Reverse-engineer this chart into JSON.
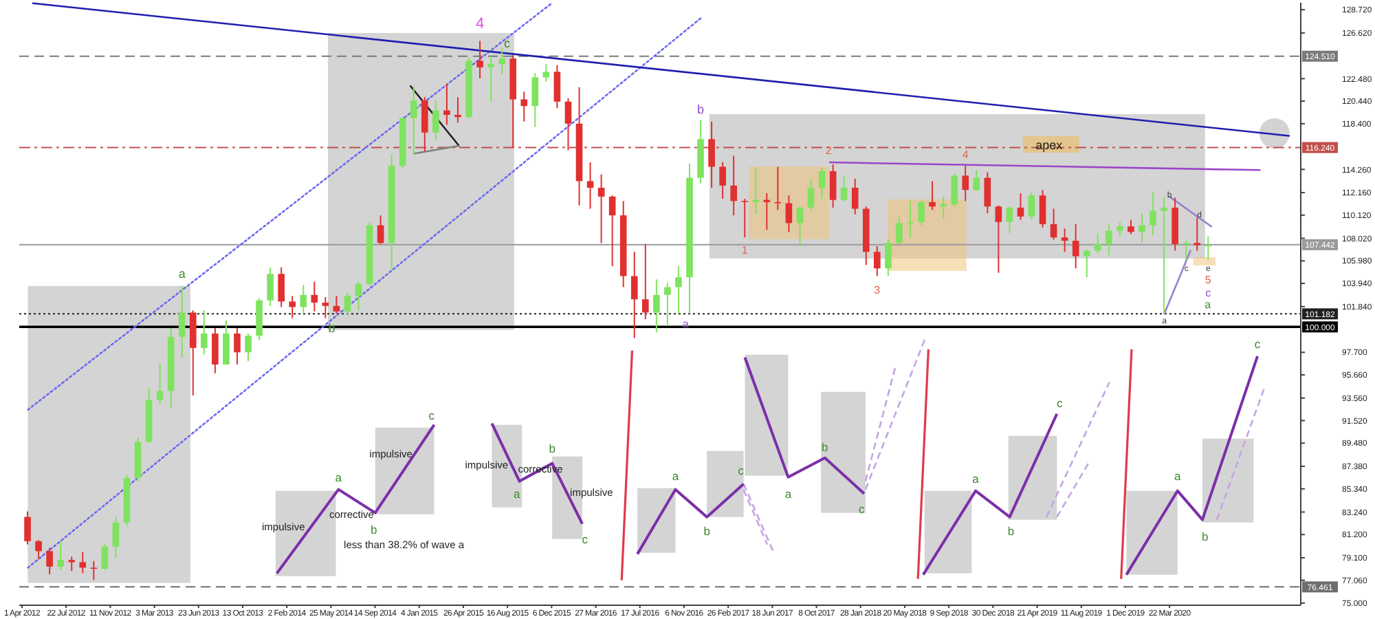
{
  "chart_data": {
    "type": "candlestick",
    "x": [
      "2012-04-15",
      "2012-05-13",
      "2012-06-10",
      "2012-07-08",
      "2012-08-05",
      "2012-09-02",
      "2012-09-30",
      "2012-10-28",
      "2012-11-25",
      "2012-12-23",
      "2013-01-20",
      "2013-02-17",
      "2013-03-17",
      "2013-04-14",
      "2013-05-12",
      "2013-06-09",
      "2013-07-07",
      "2013-08-04",
      "2013-09-01",
      "2013-09-29",
      "2013-10-27",
      "2013-11-24",
      "2013-12-22",
      "2014-01-19",
      "2014-02-16",
      "2014-03-16",
      "2014-04-13",
      "2014-05-11",
      "2014-06-08",
      "2014-07-06",
      "2014-08-03",
      "2014-08-31",
      "2014-09-28",
      "2014-10-26",
      "2014-11-23",
      "2014-12-21",
      "2015-01-18",
      "2015-02-15",
      "2015-03-15",
      "2015-04-12",
      "2015-05-10",
      "2015-06-07",
      "2015-07-05",
      "2015-08-02",
      "2015-08-30",
      "2015-09-27",
      "2015-10-25",
      "2015-11-22",
      "2015-12-20",
      "2016-01-17",
      "2016-02-14",
      "2016-03-13",
      "2016-04-10",
      "2016-05-08",
      "2016-06-05",
      "2016-07-03",
      "2016-07-31",
      "2016-08-28",
      "2016-09-25",
      "2016-10-23",
      "2016-11-20",
      "2016-12-18",
      "2017-01-15",
      "2017-02-12",
      "2017-03-12",
      "2017-04-09",
      "2017-05-07",
      "2017-06-04",
      "2017-07-02",
      "2017-07-30",
      "2017-08-27",
      "2017-09-24",
      "2017-10-22",
      "2017-11-19",
      "2017-12-17",
      "2018-01-14",
      "2018-02-11",
      "2018-03-11",
      "2018-04-08",
      "2018-05-06",
      "2018-06-03",
      "2018-07-01",
      "2018-07-29",
      "2018-08-26",
      "2018-09-23",
      "2018-10-21",
      "2018-11-18",
      "2018-12-16",
      "2019-01-13",
      "2019-02-10",
      "2019-03-10",
      "2019-04-07",
      "2019-05-05",
      "2019-06-02",
      "2019-06-30",
      "2019-07-28",
      "2019-08-25",
      "2019-09-22",
      "2019-10-20",
      "2019-11-17",
      "2019-12-15",
      "2020-01-12",
      "2020-02-09",
      "2020-03-08",
      "2020-04-05",
      "2020-05-03",
      "2020-05-31",
      "2020-06-28"
    ],
    "ohlc": [
      [
        82.8,
        83.3,
        80.3,
        80.6
      ],
      [
        80.6,
        80.7,
        79.0,
        79.7
      ],
      [
        79.7,
        80.0,
        77.6,
        78.3
      ],
      [
        78.3,
        80.6,
        78.0,
        78.9
      ],
      [
        78.9,
        79.2,
        77.9,
        78.7
      ],
      [
        78.7,
        79.6,
        77.7,
        78.2
      ],
      [
        78.2,
        78.8,
        77.1,
        78.1
      ],
      [
        78.1,
        80.4,
        78.0,
        80.1
      ],
      [
        80.1,
        82.8,
        79.1,
        82.3
      ],
      [
        82.3,
        86.6,
        82.0,
        86.3
      ],
      [
        86.3,
        90.0,
        86.0,
        89.6
      ],
      [
        89.6,
        94.5,
        89.5,
        93.4
      ],
      [
        93.4,
        96.7,
        93.0,
        94.2
      ],
      [
        94.2,
        99.9,
        92.6,
        99.1
      ],
      [
        99.1,
        103.7,
        97.2,
        101.3
      ],
      [
        101.3,
        101.5,
        93.8,
        98.1
      ],
      [
        98.1,
        101.5,
        97.5,
        99.4
      ],
      [
        99.4,
        99.9,
        95.8,
        96.6
      ],
      [
        96.6,
        100.6,
        96.6,
        99.4
      ],
      [
        99.4,
        99.9,
        96.6,
        97.7
      ],
      [
        97.7,
        99.4,
        96.9,
        99.2
      ],
      [
        99.2,
        102.6,
        98.8,
        102.4
      ],
      [
        102.4,
        105.4,
        101.9,
        104.8
      ],
      [
        104.8,
        105.4,
        101.8,
        102.3
      ],
      [
        102.3,
        102.8,
        100.8,
        101.8
      ],
      [
        101.8,
        103.8,
        101.2,
        102.9
      ],
      [
        102.9,
        104.1,
        101.4,
        102.2
      ],
      [
        102.2,
        102.7,
        100.8,
        101.9
      ],
      [
        101.9,
        102.8,
        101.2,
        101.4
      ],
      [
        101.4,
        103.1,
        101.1,
        102.8
      ],
      [
        102.8,
        104.1,
        101.5,
        103.9
      ],
      [
        103.9,
        109.5,
        103.7,
        109.2
      ],
      [
        109.2,
        110.1,
        107.5,
        107.6
      ],
      [
        107.6,
        115.6,
        105.2,
        114.6
      ],
      [
        114.6,
        119.0,
        114.4,
        118.9
      ],
      [
        118.9,
        121.8,
        115.6,
        120.5
      ],
      [
        120.5,
        120.8,
        115.9,
        117.6
      ],
      [
        117.6,
        120.5,
        116.9,
        119.6
      ],
      [
        119.6,
        122.0,
        118.3,
        119.2
      ],
      [
        119.2,
        120.8,
        118.5,
        119.0
      ],
      [
        119.0,
        124.4,
        118.9,
        124.1
      ],
      [
        124.1,
        125.9,
        122.5,
        123.5
      ],
      [
        123.5,
        124.5,
        120.4,
        123.8
      ],
      [
        123.8,
        125.3,
        122.9,
        124.3
      ],
      [
        124.3,
        124.6,
        116.2,
        120.6
      ],
      [
        120.6,
        121.3,
        118.6,
        120.0
      ],
      [
        120.0,
        123.0,
        118.1,
        122.6
      ],
      [
        122.6,
        123.8,
        122.2,
        123.1
      ],
      [
        123.1,
        123.7,
        119.8,
        120.4
      ],
      [
        120.4,
        120.7,
        116.0,
        118.4
      ],
      [
        118.4,
        121.7,
        111.0,
        113.2
      ],
      [
        113.2,
        114.9,
        110.7,
        112.6
      ],
      [
        112.6,
        113.8,
        107.6,
        111.8
      ],
      [
        111.8,
        111.9,
        105.5,
        110.1
      ],
      [
        110.1,
        111.4,
        103.6,
        104.6
      ],
      [
        104.6,
        106.8,
        99.0,
        102.5
      ],
      [
        102.5,
        107.5,
        100.7,
        101.3
      ],
      [
        101.3,
        104.3,
        99.5,
        102.9
      ],
      [
        102.9,
        104.0,
        100.1,
        103.6
      ],
      [
        103.6,
        105.5,
        101.2,
        104.5
      ],
      [
        104.5,
        114.8,
        101.2,
        113.5
      ],
      [
        113.5,
        118.7,
        113.0,
        117.0
      ],
      [
        117.0,
        118.6,
        112.6,
        114.5
      ],
      [
        114.5,
        114.9,
        111.6,
        112.8
      ],
      [
        112.8,
        115.5,
        110.1,
        111.4
      ],
      [
        111.4,
        111.6,
        108.1,
        111.3
      ],
      [
        111.3,
        114.4,
        110.2,
        111.5
      ],
      [
        111.5,
        112.1,
        108.8,
        111.3
      ],
      [
        111.3,
        114.5,
        110.6,
        111.2
      ],
      [
        111.2,
        111.9,
        108.6,
        109.4
      ],
      [
        109.4,
        110.9,
        107.3,
        110.8
      ],
      [
        110.8,
        113.4,
        110.6,
        112.6
      ],
      [
        112.6,
        114.4,
        111.6,
        114.1
      ],
      [
        114.1,
        114.7,
        110.8,
        111.5
      ],
      [
        111.5,
        113.7,
        111.4,
        112.6
      ],
      [
        112.6,
        113.4,
        110.2,
        110.7
      ],
      [
        110.7,
        110.9,
        105.6,
        106.8
      ],
      [
        106.8,
        107.3,
        104.6,
        105.3
      ],
      [
        105.3,
        107.9,
        104.6,
        107.6
      ],
      [
        107.6,
        110.0,
        107.5,
        109.4
      ],
      [
        109.4,
        111.4,
        108.1,
        109.5
      ],
      [
        109.5,
        111.4,
        109.2,
        111.3
      ],
      [
        111.3,
        113.2,
        110.6,
        110.9
      ],
      [
        110.9,
        111.8,
        109.8,
        111.1
      ],
      [
        111.1,
        113.9,
        110.9,
        113.7
      ],
      [
        113.7,
        114.6,
        111.4,
        112.4
      ],
      [
        112.4,
        114.2,
        112.3,
        113.5
      ],
      [
        113.5,
        114.0,
        110.3,
        110.9
      ],
      [
        110.9,
        111.0,
        104.9,
        109.5
      ],
      [
        109.5,
        110.9,
        108.5,
        110.8
      ],
      [
        110.8,
        112.1,
        109.7,
        110.0
      ],
      [
        110.0,
        112.2,
        109.7,
        111.9
      ],
      [
        111.9,
        112.4,
        109.0,
        109.3
      ],
      [
        109.3,
        110.7,
        107.9,
        108.1
      ],
      [
        108.1,
        108.9,
        106.8,
        107.8
      ],
      [
        107.8,
        109.3,
        105.3,
        106.4
      ],
      [
        106.4,
        107.0,
        104.5,
        106.9
      ],
      [
        106.9,
        108.5,
        106.7,
        107.5
      ],
      [
        107.5,
        109.3,
        106.5,
        108.7
      ],
      [
        108.7,
        109.5,
        108.2,
        109.1
      ],
      [
        109.1,
        109.7,
        108.4,
        108.6
      ],
      [
        108.6,
        110.3,
        107.7,
        109.2
      ],
      [
        109.2,
        112.2,
        108.3,
        110.5
      ],
      [
        110.5,
        111.7,
        101.2,
        110.8
      ],
      [
        110.8,
        111.7,
        106.9,
        107.5
      ],
      [
        107.5,
        107.8,
        106.0,
        107.6
      ],
      [
        107.6,
        109.9,
        106.9,
        107.4
      ],
      [
        107.4,
        108.2,
        106.1,
        107.4
      ]
    ],
    "colors": [
      "#e0302f",
      "#e0302f",
      "#e0302f",
      "#7fe35f",
      "#e0302f",
      "#e0302f",
      "#e0302f",
      "#7fe35f",
      "#7fe35f",
      "#7fe35f",
      "#7fe35f",
      "#7fe35f",
      "#7fe35f",
      "#7fe35f",
      "#7fe35f",
      "#e0302f",
      "#7fe35f",
      "#e0302f",
      "#7fe35f",
      "#e0302f",
      "#7fe35f",
      "#7fe35f",
      "#7fe35f",
      "#e0302f",
      "#e0302f",
      "#7fe35f",
      "#e0302f",
      "#e0302f",
      "#e0302f",
      "#7fe35f",
      "#7fe35f",
      "#7fe35f",
      "#e0302f",
      "#7fe35f",
      "#7fe35f",
      "#7fe35f",
      "#e0302f",
      "#7fe35f",
      "#e0302f",
      "#e0302f",
      "#7fe35f",
      "#e0302f",
      "#7fe35f",
      "#7fe35f",
      "#e0302f",
      "#e0302f",
      "#7fe35f",
      "#7fe35f",
      "#e0302f",
      "#e0302f",
      "#e0302f",
      "#e0302f",
      "#e0302f",
      "#e0302f",
      "#e0302f",
      "#e0302f",
      "#e0302f",
      "#7fe35f",
      "#7fe35f",
      "#7fe35f",
      "#7fe35f",
      "#7fe35f",
      "#e0302f",
      "#e0302f",
      "#e0302f",
      "#e0302f",
      "#7fe35f",
      "#e0302f",
      "#e0302f",
      "#e0302f",
      "#7fe35f",
      "#7fe35f",
      "#7fe35f",
      "#e0302f",
      "#7fe35f",
      "#e0302f",
      "#e0302f",
      "#e0302f",
      "#7fe35f",
      "#7fe35f",
      "#7fe35f",
      "#7fe35f",
      "#e0302f",
      "#7fe35f",
      "#7fe35f",
      "#e0302f",
      "#7fe35f",
      "#e0302f",
      "#e0302f",
      "#7fe35f",
      "#e0302f",
      "#7fe35f",
      "#e0302f",
      "#e0302f",
      "#e0302f",
      "#e0302f",
      "#7fe35f",
      "#7fe35f",
      "#7fe35f",
      "#7fe35f",
      "#e0302f",
      "#7fe35f",
      "#7fe35f",
      "#7fe35f",
      "#e0302f",
      "#7fe35f",
      "#e0302f",
      "#7fe35f"
    ],
    "series": [
      {
        "type": "line",
        "x": [
          "2012-04-16",
          "2015-12-06"
        ],
        "values": [
          92.5,
          129.3
        ],
        "color": "#6a6af0",
        "line_style": "dotted"
      },
      {
        "type": "line",
        "x": [
          "2012-04-16",
          "2016-12-20"
        ],
        "values": [
          78.2,
          128.0
        ],
        "color": "#6a6af0",
        "line_style": "dotted"
      },
      {
        "type": "line",
        "x": [
          "2012-04-29",
          "2021-01-19"
        ],
        "values": [
          129.3,
          117.3
        ],
        "color": "#1f1fb0",
        "line_style": "solid"
      },
      {
        "type": "line",
        "x": [
          "2017-11-11",
          "2020-11-06"
        ],
        "values": [
          114.9,
          114.2
        ],
        "color": "#9b45c8",
        "line_style": "solid"
      },
      {
        "type": "line",
        "x": [
          "2014-12-13",
          "2015-04-15"
        ],
        "values": [
          121.8,
          116.4
        ],
        "color": "#202020",
        "line_style": "solid"
      },
      {
        "type": "line",
        "x": [
          "2014-12-23",
          "2015-04-15"
        ],
        "values": [
          115.7,
          116.4
        ],
        "color": "#808080",
        "line_style": "solid"
      },
      {
        "type": "line",
        "x": [
          "2020-03-22",
          "2020-07-06"
        ],
        "values": [
          111.8,
          109.1
        ],
        "color": "#9a7fd0",
        "line_style": "solid"
      },
      {
        "type": "line",
        "x": [
          "2020-03-09",
          "2020-05-14"
        ],
        "values": [
          101.2,
          106.9
        ],
        "color": "#9a7fd0",
        "line_style": "solid"
      }
    ],
    "xlim": [
      "2012-03-25",
      "2021-02-18"
    ],
    "xticks": [
      {
        "value": "2012-04-01",
        "label": "1 Apr 2012"
      },
      {
        "value": "2012-07-22",
        "label": "22 Jul 2012"
      },
      {
        "value": "2012-11-11",
        "label": "11 Nov 2012"
      },
      {
        "value": "2013-03-03",
        "label": "3 Mar 2013"
      },
      {
        "value": "2013-06-23",
        "label": "23 Jun 2013"
      },
      {
        "value": "2013-10-13",
        "label": "13 Oct 2013"
      },
      {
        "value": "2014-02-02",
        "label": "2 Feb 2014"
      },
      {
        "value": "2014-05-25",
        "label": "25 May 2014"
      },
      {
        "value": "2014-09-14",
        "label": "14 Sep 2014"
      },
      {
        "value": "2015-01-04",
        "label": "4 Jan 2015"
      },
      {
        "value": "2015-04-26",
        "label": "26 Apr 2015"
      },
      {
        "value": "2015-08-16",
        "label": "16 Aug 2015"
      },
      {
        "value": "2015-12-06",
        "label": "6 Dec 2015"
      },
      {
        "value": "2016-03-27",
        "label": "27 Mar 2016"
      },
      {
        "value": "2016-07-17",
        "label": "17 Jul 2016"
      },
      {
        "value": "2016-11-06",
        "label": "6 Nov 2016"
      },
      {
        "value": "2017-02-26",
        "label": "26 Feb 2017"
      },
      {
        "value": "2017-06-18",
        "label": "18 Jun 2017"
      },
      {
        "value": "2017-10-08",
        "label": "8 Oct 2017"
      },
      {
        "value": "2018-01-28",
        "label": "28 Jan 2018"
      },
      {
        "value": "2018-05-20",
        "label": "20 May 2018"
      },
      {
        "value": "2018-09-09",
        "label": "9 Sep 2018"
      },
      {
        "value": "2018-12-30",
        "label": "30 Dec 2018"
      },
      {
        "value": "2019-04-21",
        "label": "21 Apr 2019"
      },
      {
        "value": "2019-08-11",
        "label": "11 Aug 2019"
      },
      {
        "value": "2019-12-01",
        "label": "1 Dec 2019"
      },
      {
        "value": "2020-03-22",
        "label": "22 Mar 2020"
      }
    ],
    "ylim": [
      74.8,
      129.35
    ],
    "yticks": [
      {
        "value": 128.72,
        "label": "128.720"
      },
      {
        "value": 126.62,
        "label": "126.620"
      },
      {
        "value": 122.48,
        "label": "122.480"
      },
      {
        "value": 120.44,
        "label": "120.440"
      },
      {
        "value": 118.4,
        "label": "118.400"
      },
      {
        "value": 114.26,
        "label": "114.260"
      },
      {
        "value": 112.16,
        "label": "112.160"
      },
      {
        "value": 110.12,
        "label": "110.120"
      },
      {
        "value": 108.02,
        "label": "108.020"
      },
      {
        "value": 105.98,
        "label": "105.980"
      },
      {
        "value": 103.94,
        "label": "103.940"
      },
      {
        "value": 101.84,
        "label": "101.840"
      },
      {
        "value": 97.7,
        "label": "97.700"
      },
      {
        "value": 95.66,
        "label": "95.660"
      },
      {
        "value": 93.56,
        "label": "93.560"
      },
      {
        "value": 91.52,
        "label": "91.520"
      },
      {
        "value": 89.48,
        "label": "89.480"
      },
      {
        "value": 87.38,
        "label": "87.380"
      },
      {
        "value": 85.34,
        "label": "85.340"
      },
      {
        "value": 83.24,
        "label": "83.240"
      },
      {
        "value": 81.2,
        "label": "81.200"
      },
      {
        "value": 79.1,
        "label": "79.100"
      },
      {
        "value": 77.06,
        "label": "77.060"
      },
      {
        "value": 75,
        "label": "75.000"
      }
    ],
    "ref_lines": [
      {
        "axis": "y",
        "value": 124.51,
        "label": "124.510",
        "color": "#7a7a7a",
        "line_style": "dashed"
      },
      {
        "axis": "y",
        "value": 116.24,
        "label": "116.240",
        "color": "#c0504d",
        "line_style": "dashdot"
      },
      {
        "axis": "y",
        "value": 107.442,
        "label": "107.442",
        "color": "#9a9a9a",
        "line_style": "solid"
      },
      {
        "axis": "y",
        "value": 101.182,
        "label": "101.182",
        "color": "#202020",
        "line_style": "dotted"
      },
      {
        "axis": "y",
        "value": 100,
        "label": "100.000",
        "color": "#000000",
        "line_style": "solid"
      },
      {
        "axis": "y",
        "value": 76.461,
        "label": "76.461",
        "color": "#6e6e6e",
        "line_style": "dashed"
      }
    ],
    "annotations": [
      {
        "text": "a",
        "x": "2013-05-12",
        "y": 103.7
      },
      {
        "text": "b",
        "x": "2014-05-27",
        "y": 99.9
      },
      {
        "text": "4",
        "x": "2015-06-07",
        "y": 125.9
      },
      {
        "text": "c",
        "x": "2015-08-15",
        "y": 125.7
      },
      {
        "text": "a",
        "x": "2016-11-10",
        "y": 100.3
      },
      {
        "text": "b",
        "x": "2016-12-18",
        "y": 118.7
      },
      {
        "text": "1",
        "x": "2017-04-09",
        "y": 108.1
      },
      {
        "text": "2",
        "x": "2017-11-08",
        "y": 116.0
      },
      {
        "text": "3",
        "x": "2018-03-11",
        "y": 104.6
      },
      {
        "text": "4",
        "x": "2018-10-21",
        "y": 114.6
      },
      {
        "text": "apex",
        "x": "2019-05-21",
        "y": 116.5
      },
      {
        "text": "b",
        "x": "2020-03-22",
        "y": 112.0
      },
      {
        "text": "d",
        "x": "2020-06-06",
        "y": 110.2
      },
      {
        "text": "c",
        "x": "2020-05-04",
        "y": 105.3
      },
      {
        "text": "a",
        "x": "2020-03-09",
        "y": 100.6
      },
      {
        "text": "e",
        "x": "2020-06-28",
        "y": 106.1
      },
      {
        "text": "5",
        "x": "2020-06-28",
        "y": 106.1
      },
      {
        "text": "c",
        "x": "2020-06-28",
        "y": 106.1
      },
      "a",
      "impulsive",
      "a",
      "corrective",
      "b",
      "less than 38.2% of wave a",
      "impulsive",
      "c",
      "impulsive",
      "a",
      "corrective",
      "b",
      "impulsive",
      "c",
      "a",
      "b",
      "c",
      "a",
      "b",
      "c",
      "a",
      "b",
      "c",
      "a",
      "b",
      "c"
    ]
  }
}
